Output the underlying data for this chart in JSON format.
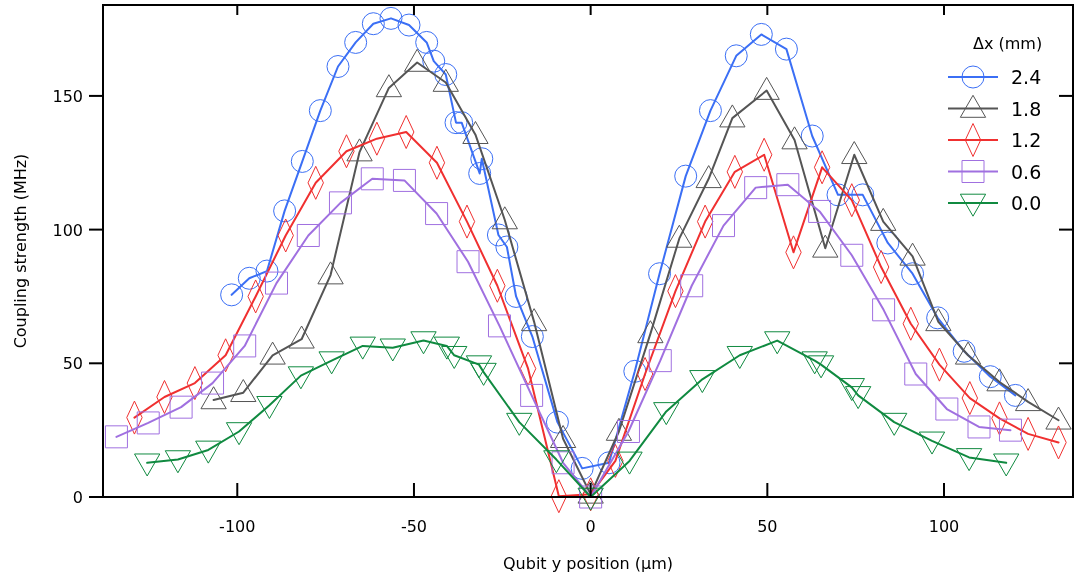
{
  "chart_data": {
    "type": "line",
    "xlabel": "Qubit y position (μm)",
    "ylabel": "Coupling strength (MHz)",
    "legend_title": "Δx (mm)",
    "legend": "top right",
    "grid": false,
    "line_style": "solid",
    "xlim": [
      -138,
      136.5
    ],
    "ylim": [
      0,
      184
    ],
    "xticks": [
      -100,
      -50,
      0,
      50,
      100
    ],
    "yticks": [
      0,
      50,
      100,
      150
    ],
    "series": [
      {
        "name": "2.4",
        "color": "#3b6ff5",
        "marker": "circle",
        "x": [
          -101.6,
          -96.6,
          -91.6,
          -86.6,
          -81.6,
          -76.5,
          -71.5,
          -66.5,
          -61.5,
          -56.5,
          -51.4,
          -46.4,
          -44.4,
          -41,
          -38.1,
          -36.5,
          -31.4,
          -30.8,
          -26.1,
          -23.7,
          -21.1,
          -16.5,
          -9.4,
          -2.4,
          5.2,
          12.5,
          19.5,
          26.9,
          33.9,
          41.2,
          48.3,
          55.4,
          62.7,
          70,
          77,
          84.1,
          91.1,
          98.2,
          105.7,
          113.1,
          120.2
        ],
        "values": [
          75.6,
          81.8,
          84.5,
          107,
          125.5,
          144.5,
          161,
          170,
          177,
          179,
          176.5,
          170,
          163,
          158,
          140,
          140,
          121,
          126.5,
          98,
          93.5,
          75,
          60,
          28,
          10.7,
          12.8,
          47,
          83.5,
          120,
          144.5,
          165,
          173,
          167.5,
          135,
          113,
          113,
          95,
          83.5,
          67,
          54.5,
          45,
          38
        ]
      },
      {
        "name": "1.8",
        "color": "#555555",
        "marker": "triangle",
        "x": [
          -106.7,
          -98.3,
          -90,
          -81.8,
          -73.6,
          -65.4,
          -57.1,
          -49.1,
          -41,
          -32.6,
          -24.3,
          -16,
          -7.8,
          0,
          8,
          16.9,
          25.1,
          33.4,
          40.1,
          49.8,
          57.7,
          66.4,
          74.6,
          82.8,
          91.1,
          98.4,
          106.8,
          115.7,
          123.8,
          132.4
        ],
        "values": [
          36.3,
          39,
          53,
          59,
          83,
          129,
          153,
          162.5,
          155,
          135.5,
          103.6,
          65.5,
          21.8,
          1,
          24.5,
          61,
          96.7,
          119,
          141.7,
          152,
          133.5,
          93,
          128,
          103,
          90,
          65.5,
          53,
          43,
          35.6,
          28.7
        ]
      },
      {
        "name": "1.2",
        "color": "#f03030",
        "marker": "diamond",
        "x": [
          -129.1,
          -120.6,
          -112,
          -103.3,
          -94.8,
          -86.3,
          -77.8,
          -69.1,
          -60.5,
          -52.2,
          -43.5,
          -35,
          -26.4,
          -17.7,
          -9,
          0,
          7,
          15.4,
          24,
          32.4,
          40.8,
          49.1,
          57.4,
          65.5,
          73.9,
          82.2,
          90.6,
          98.7,
          107.3,
          115.7,
          123.8,
          132.4
        ],
        "values": [
          29.7,
          37.4,
          42.6,
          53,
          75,
          97.8,
          117.5,
          129.3,
          134,
          136.5,
          125,
          103,
          79,
          48,
          0.3,
          1,
          13.5,
          46,
          77,
          103,
          121.6,
          128,
          91.5,
          123.3,
          111,
          86,
          64.8,
          49.5,
          37,
          29.4,
          23.6,
          20.4
        ]
      },
      {
        "name": "0.6",
        "color": "#a070e0",
        "marker": "square",
        "x": [
          -134.2,
          -125.2,
          -115.9,
          -107,
          -97.9,
          -88.9,
          -79.9,
          -70.8,
          -61.8,
          -52.7,
          -43.6,
          -34.7,
          -25.8,
          -16.7,
          -7.8,
          0,
          10.7,
          19.7,
          28.6,
          37.6,
          46.7,
          55.8,
          64.8,
          73.9,
          82.9,
          92,
          100.8,
          109.9,
          118.8
        ],
        "values": [
          22.5,
          27.7,
          33.6,
          42.6,
          56.5,
          80,
          97.8,
          110,
          119,
          118.4,
          106,
          88,
          64,
          38,
          12.8,
          0,
          24.5,
          51,
          79,
          101.5,
          115.7,
          116.8,
          106.8,
          90.4,
          70,
          46,
          32.9,
          26.2,
          25
        ]
      },
      {
        "name": "0.0",
        "color": "#108a40",
        "marker": "triangle-down",
        "x": [
          -125.5,
          -116.8,
          -108.2,
          -99.5,
          -90.9,
          -82,
          -73.3,
          -64.5,
          -56,
          -47.3,
          -40.7,
          -38.6,
          -31.6,
          -30.3,
          -20.2,
          -9.7,
          0,
          11,
          21.4,
          31.6,
          42.2,
          52.8,
          63.4,
          65.2,
          73.9,
          75.7,
          85.9,
          96.6,
          107.1,
          117.6
        ],
        "values": [
          12.8,
          14,
          17.6,
          24.5,
          34.3,
          45.4,
          51,
          56.5,
          55.8,
          58.5,
          56.5,
          53,
          49.5,
          46.7,
          28,
          14,
          0,
          13.5,
          32,
          44,
          53,
          58.5,
          51,
          49.5,
          41,
          38,
          28,
          21,
          14.8,
          12.8
        ]
      }
    ]
  }
}
